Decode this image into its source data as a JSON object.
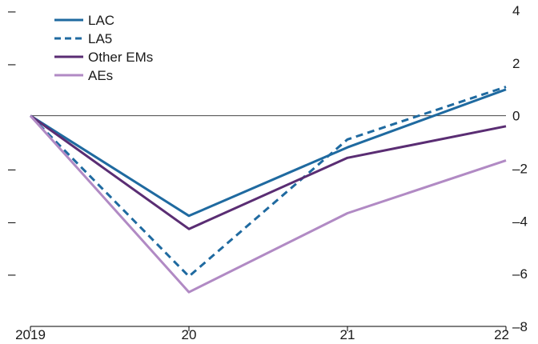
{
  "chart_data": {
    "type": "line",
    "x": [
      "2019",
      "20",
      "21",
      "22"
    ],
    "xlabel": "",
    "ylabel": "",
    "ylim": [
      -8,
      4
    ],
    "y_ticks_right": [
      4,
      2,
      0,
      -2,
      -4,
      -6,
      -8
    ],
    "y_ticks_right_labels": [
      "4",
      "2",
      "0",
      "–2",
      "–4",
      "–6",
      "–8"
    ],
    "y_ticks_left_labels": [
      "–",
      "–",
      "–",
      "–",
      "–"
    ],
    "grid": false,
    "zero_line": true,
    "legend_position": "top-left",
    "series": [
      {
        "name": "LAC",
        "values": [
          0,
          -3.8,
          -1.2,
          1.0
        ],
        "color": "#1f6aa0",
        "dash": "solid"
      },
      {
        "name": "LA5",
        "values": [
          0,
          -6.1,
          -0.9,
          1.1
        ],
        "color": "#1f6aa0",
        "dash": "dashed"
      },
      {
        "name": "Other EMs",
        "values": [
          0,
          -4.3,
          -1.6,
          -0.4
        ],
        "color": "#5a2d73",
        "dash": "solid"
      },
      {
        "name": "AEs",
        "values": [
          0,
          -6.7,
          -3.7,
          -1.7
        ],
        "color": "#b18ac4",
        "dash": "solid"
      }
    ]
  }
}
